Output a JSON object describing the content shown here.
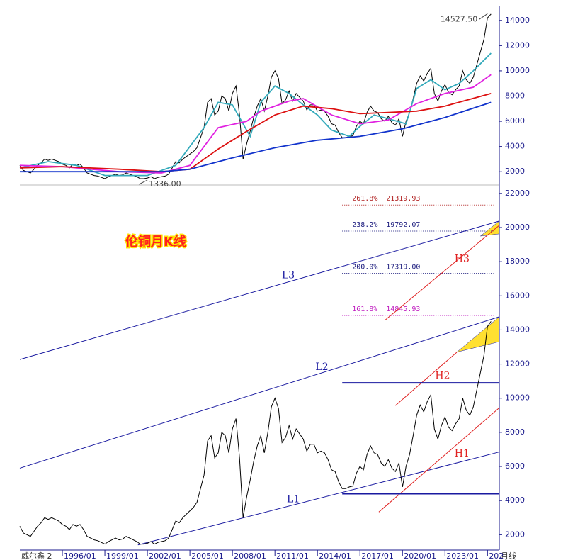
{
  "chart_data": [
    {
      "type": "line",
      "xlim": [
        "1993/01",
        "2026/11"
      ],
      "ylim": [
        1000,
        15000
      ],
      "yticks": [
        2000,
        4000,
        6000,
        8000,
        10000,
        12000,
        14000
      ],
      "series": [
        {
          "color": "#000000",
          "x": [
            "1993/01",
            "1993/04",
            "1993/07",
            "1993/10",
            "1994/01",
            "1994/04",
            "1994/07",
            "1994/10",
            "1995/01",
            "1995/04",
            "1995/07",
            "1995/10",
            "1996/01",
            "1996/04",
            "1996/07",
            "1996/10",
            "1997/01",
            "1997/04",
            "1997/07",
            "1997/10",
            "1998/01",
            "1998/04",
            "1998/07",
            "1998/10",
            "1999/01",
            "1999/04",
            "1999/07",
            "1999/10",
            "2000/01",
            "2000/04",
            "2000/07",
            "2000/10",
            "2001/01",
            "2001/04",
            "2001/07",
            "2001/10",
            "2002/01",
            "2002/04",
            "2002/07",
            "2002/10",
            "2003/01",
            "2003/04",
            "2003/07",
            "2003/10",
            "2004/01",
            "2004/04",
            "2004/07",
            "2004/10",
            "2005/01",
            "2005/04",
            "2005/07",
            "2005/10",
            "2006/01",
            "2006/04",
            "2006/07",
            "2006/10",
            "2007/01",
            "2007/04",
            "2007/07",
            "2007/10",
            "2008/01",
            "2008/04",
            "2008/07",
            "2008/10",
            "2009/01",
            "2009/04",
            "2009/07",
            "2009/10",
            "2010/01",
            "2010/04",
            "2010/07",
            "2010/10",
            "2011/01",
            "2011/04",
            "2011/07",
            "2011/10",
            "2012/01",
            "2012/04",
            "2012/07",
            "2012/10",
            "2013/01",
            "2013/04",
            "2013/07",
            "2013/10",
            "2014/01",
            "2014/04",
            "2014/07",
            "2014/10",
            "2015/01",
            "2015/04",
            "2015/07",
            "2015/10",
            "2016/01",
            "2016/04",
            "2016/07",
            "2016/10",
            "2017/01",
            "2017/04",
            "2017/07",
            "2017/10",
            "2018/01",
            "2018/04",
            "2018/07",
            "2018/10",
            "2019/01",
            "2019/04",
            "2019/07",
            "2019/10",
            "2020/01",
            "2020/04",
            "2020/07",
            "2020/10",
            "2021/01",
            "2021/04",
            "2021/07",
            "2021/10",
            "2022/01",
            "2022/04",
            "2022/07",
            "2022/10",
            "2023/01",
            "2023/04",
            "2023/07",
            "2023/10",
            "2024/01",
            "2024/04",
            "2024/07",
            "2024/10",
            "2025/01",
            "2025/04",
            "2025/07",
            "2025/10",
            "2026/01",
            "2026/04"
          ],
          "values": [
            2500,
            2100,
            2000,
            1900,
            2200,
            2500,
            2700,
            3000,
            2900,
            3000,
            2900,
            2800,
            2600,
            2500,
            2300,
            2600,
            2500,
            2600,
            2300,
            1900,
            1800,
            1700,
            1650,
            1550,
            1450,
            1600,
            1700,
            1800,
            1700,
            1750,
            1900,
            1800,
            1700,
            1600,
            1450,
            1450,
            1500,
            1600,
            1450,
            1550,
            1600,
            1650,
            1800,
            2300,
            2800,
            2700,
            3000,
            3200,
            3400,
            3600,
            3900,
            4700,
            5500,
            7500,
            7800,
            6500,
            6800,
            8000,
            7800,
            6800,
            8200,
            8800,
            6500,
            3000,
            4200,
            5200,
            6300,
            7200,
            7800,
            6800,
            8000,
            9500,
            10000,
            9400,
            7400,
            7700,
            8400,
            7600,
            8200,
            7900,
            7600,
            6900,
            7300,
            7300,
            6800,
            6900,
            6800,
            6400,
            5800,
            5700,
            5100,
            4700,
            4700,
            4800,
            4850,
            5600,
            6000,
            5800,
            6700,
            7200,
            6800,
            6700,
            6200,
            6000,
            6400,
            5900,
            5700,
            6200,
            4800,
            6000,
            6700,
            7800,
            9000,
            9600,
            9200,
            9800,
            10200,
            8200,
            7600,
            8400,
            8900,
            8300,
            8100,
            8500,
            8800,
            10000,
            9300,
            9000,
            9500,
            10500,
            11500,
            12500,
            14200,
            14500
          ]
        },
        {
          "color": "#33aabb",
          "x": [
            "1993/01",
            "1995/01",
            "1997/01",
            "1999/01",
            "2002/01",
            "2004/01",
            "2006/01",
            "2007/01",
            "2008/01",
            "2009/04",
            "2010/01",
            "2011/01",
            "2012/01",
            "2013/01",
            "2014/01",
            "2015/01",
            "2016/04",
            "2017/01",
            "2018/01",
            "2019/01",
            "2020/04",
            "2021/01",
            "2022/01",
            "2023/01",
            "2024/01",
            "2025/01",
            "2026/04"
          ],
          "values": [
            2300,
            2800,
            2500,
            1700,
            1700,
            2500,
            5500,
            7500,
            7300,
            4800,
            7500,
            8800,
            8200,
            7300,
            6500,
            5300,
            4800,
            5600,
            6500,
            6200,
            5800,
            8600,
            9300,
            8500,
            9000,
            10000,
            11400
          ]
        },
        {
          "color": "#e020e0",
          "x": [
            "1993/01",
            "1996/01",
            "2000/01",
            "2003/01",
            "2005/01",
            "2007/01",
            "2009/01",
            "2010/01",
            "2012/01",
            "2013/01",
            "2015/01",
            "2017/01",
            "2019/01",
            "2021/01",
            "2023/01",
            "2025/01",
            "2026/04"
          ],
          "values": [
            2500,
            2400,
            2000,
            1900,
            2500,
            5500,
            6000,
            6800,
            7600,
            7800,
            6500,
            5800,
            6100,
            7400,
            8200,
            8700,
            9700
          ]
        },
        {
          "color": "#dd1111",
          "x": [
            "1993/01",
            "1996/01",
            "2000/01",
            "2003/01",
            "2005/01",
            "2007/01",
            "2009/01",
            "2011/01",
            "2013/01",
            "2015/01",
            "2017/01",
            "2019/01",
            "2021/01",
            "2023/01",
            "2026/04"
          ],
          "values": [
            2300,
            2400,
            2200,
            2000,
            2200,
            3800,
            5200,
            6500,
            7200,
            7000,
            6600,
            6700,
            6800,
            7200,
            8200
          ]
        },
        {
          "color": "#1133cc",
          "x": [
            "1993/01",
            "2003/01",
            "2005/01",
            "2008/01",
            "2011/01",
            "2014/01",
            "2017/01",
            "2020/01",
            "2023/01",
            "2026/04"
          ],
          "values": [
            2000,
            2000,
            2200,
            3100,
            3900,
            4500,
            4800,
            5400,
            6300,
            7500
          ]
        }
      ],
      "annotations": [
        {
          "x": "2026/01",
          "y": {
            "value": 14527.5,
            "label": "14527.50"
          }
        },
        {
          "x": "2002/01",
          "y": {
            "value": 1336,
            "label": "1336.00"
          }
        }
      ]
    },
    {
      "type": "line",
      "title": "伦铜月K线",
      "xlim": [
        "1993/01",
        "2026/11"
      ],
      "ylim": [
        1100,
        22450
      ],
      "yticks": [
        2000,
        4000,
        6000,
        8000,
        10000,
        12000,
        14000,
        16000,
        18000,
        20000,
        22000
      ],
      "xticks": [
        {
          "value": "1996/01",
          "label": "1996/01"
        },
        {
          "value": "1999/01",
          "label": "1999/01"
        },
        {
          "value": "2002/01",
          "label": "2002/01"
        },
        {
          "value": "2005/01",
          "label": "2005/01"
        },
        {
          "value": "2008/01",
          "label": "2008/01"
        },
        {
          "value": "2011/01",
          "label": "2011/01"
        },
        {
          "value": "2014/01",
          "label": "2014/01"
        },
        {
          "value": "2017/01",
          "label": "2017/01"
        },
        {
          "value": "2020/01",
          "label": "2020/01"
        },
        {
          "value": "2023/01",
          "label": "2023/01"
        },
        {
          "value": "2026/01",
          "label": "202"
        }
      ],
      "footer_left": "威尔鑫 2",
      "period": "月线",
      "series": [
        {
          "color": "#000000",
          "x": [
            "1993/01",
            "1993/04",
            "1993/07",
            "1993/10",
            "1994/01",
            "1994/04",
            "1994/07",
            "1994/10",
            "1995/01",
            "1995/04",
            "1995/07",
            "1995/10",
            "1996/01",
            "1996/04",
            "1996/07",
            "1996/10",
            "1997/01",
            "1997/04",
            "1997/07",
            "1997/10",
            "1998/01",
            "1998/04",
            "1998/07",
            "1998/10",
            "1999/01",
            "1999/04",
            "1999/07",
            "1999/10",
            "2000/01",
            "2000/04",
            "2000/07",
            "2000/10",
            "2001/01",
            "2001/04",
            "2001/07",
            "2001/10",
            "2002/01",
            "2002/04",
            "2002/07",
            "2002/10",
            "2003/01",
            "2003/04",
            "2003/07",
            "2003/10",
            "2004/01",
            "2004/04",
            "2004/07",
            "2004/10",
            "2005/01",
            "2005/04",
            "2005/07",
            "2005/10",
            "2006/01",
            "2006/04",
            "2006/07",
            "2006/10",
            "2007/01",
            "2007/04",
            "2007/07",
            "2007/10",
            "2008/01",
            "2008/04",
            "2008/07",
            "2008/10",
            "2009/01",
            "2009/04",
            "2009/07",
            "2009/10",
            "2010/01",
            "2010/04",
            "2010/07",
            "2010/10",
            "2011/01",
            "2011/04",
            "2011/07",
            "2011/10",
            "2012/01",
            "2012/04",
            "2012/07",
            "2012/10",
            "2013/01",
            "2013/04",
            "2013/07",
            "2013/10",
            "2014/01",
            "2014/04",
            "2014/07",
            "2014/10",
            "2015/01",
            "2015/04",
            "2015/07",
            "2015/10",
            "2016/01",
            "2016/04",
            "2016/07",
            "2016/10",
            "2017/01",
            "2017/04",
            "2017/07",
            "2017/10",
            "2018/01",
            "2018/04",
            "2018/07",
            "2018/10",
            "2019/01",
            "2019/04",
            "2019/07",
            "2019/10",
            "2020/01",
            "2020/04",
            "2020/07",
            "2020/10",
            "2021/01",
            "2021/04",
            "2021/07",
            "2021/10",
            "2022/01",
            "2022/04",
            "2022/07",
            "2022/10",
            "2023/01",
            "2023/04",
            "2023/07",
            "2023/10",
            "2024/01",
            "2024/04",
            "2024/07",
            "2024/10",
            "2025/01",
            "2025/04",
            "2025/07",
            "2025/10",
            "2026/01",
            "2026/04"
          ],
          "values": [
            2500,
            2100,
            2000,
            1900,
            2200,
            2500,
            2700,
            3000,
            2900,
            3000,
            2900,
            2800,
            2600,
            2500,
            2300,
            2600,
            2500,
            2600,
            2300,
            1900,
            1800,
            1700,
            1650,
            1550,
            1450,
            1600,
            1700,
            1800,
            1700,
            1750,
            1900,
            1800,
            1700,
            1600,
            1450,
            1450,
            1500,
            1600,
            1450,
            1550,
            1600,
            1650,
            1800,
            2300,
            2800,
            2700,
            3000,
            3200,
            3400,
            3600,
            3900,
            4700,
            5500,
            7500,
            7800,
            6500,
            6800,
            8000,
            7800,
            6800,
            8200,
            8800,
            6500,
            3000,
            4200,
            5200,
            6300,
            7200,
            7800,
            6800,
            8000,
            9500,
            10000,
            9400,
            7400,
            7700,
            8400,
            7600,
            8200,
            7900,
            7600,
            6900,
            7300,
            7300,
            6800,
            6900,
            6800,
            6400,
            5800,
            5700,
            5100,
            4700,
            4700,
            4800,
            4850,
            5600,
            6000,
            5800,
            6700,
            7200,
            6800,
            6700,
            6200,
            6000,
            6400,
            5900,
            5700,
            6200,
            4800,
            6000,
            6700,
            7800,
            9000,
            9600,
            9200,
            9800,
            10200,
            8200,
            7600,
            8400,
            8900,
            8300,
            8100,
            8500,
            8800,
            10000,
            9300,
            9000,
            9500,
            10500,
            11500,
            12500,
            14200,
            14500
          ]
        }
      ],
      "highlights": [
        {
          "color": "#ffe030",
          "x": [
            "2023/11",
            "2026/11",
            "2026/11"
          ],
          "y": [
            12700,
            14770,
            13310
          ]
        },
        {
          "color": "#ffe030",
          "x": [
            "2025/07",
            "2026/11",
            "2026/11"
          ],
          "y": [
            19500,
            20380,
            19630
          ]
        }
      ],
      "lines": [
        {
          "label": "L1",
          "color": "#1a1aa0",
          "x": [
            "2001/05",
            "2026/11"
          ],
          "y": [
            1400,
            6850
          ]
        },
        {
          "label": "L2",
          "color": "#1a1aa0",
          "x": [
            "1993/01",
            "2026/11"
          ],
          "y": [
            5900,
            14770
          ]
        },
        {
          "label": "L3",
          "color": "#1a1aa0",
          "x": [
            "1993/01",
            "2026/11"
          ],
          "y": [
            12270,
            20380
          ]
        },
        {
          "label": "H1",
          "color": "#e02020",
          "x": [
            "2018/05",
            "2026/11"
          ],
          "y": [
            3330,
            9440
          ]
        },
        {
          "label": "H2",
          "color": "#e02020",
          "x": [
            "2019/07",
            "2023/11"
          ],
          "y": [
            9570,
            12690
          ]
        },
        {
          "label": "H3",
          "color": "#e02020",
          "x": [
            "2018/10",
            "2026/11"
          ],
          "y": [
            14560,
            20130
          ]
        },
        {
          "color": "#1a1aa0",
          "x": [
            "2015/10",
            "2026/11"
          ],
          "y": [
            10900,
            10900
          ]
        },
        {
          "color": "#1a1aa0",
          "x": [
            "2015/10",
            "2026/11"
          ],
          "y": [
            4400,
            4400
          ]
        }
      ],
      "fib_levels": [
        {
          "ratio": "261.8%",
          "level": {
            "value": 21319.93,
            "label": "21319.93"
          },
          "color": "#b02020",
          "x": [
            "2015/10",
            "2026/06"
          ]
        },
        {
          "ratio": "238.2%",
          "level": {
            "value": 19792.07,
            "label": "19792.07"
          },
          "color": "#202080",
          "x": [
            "2015/10",
            "2026/06"
          ]
        },
        {
          "ratio": "200.0%",
          "level": {
            "value": 17319,
            "label": "17319.00"
          },
          "color": "#202080",
          "x": [
            "2015/10",
            "2026/06"
          ]
        },
        {
          "ratio": "161.8%",
          "level": {
            "value": 14845.93,
            "label": "14845.93"
          },
          "color": "#c020c0",
          "x": [
            "2015/10",
            "2026/06"
          ]
        }
      ]
    }
  ]
}
